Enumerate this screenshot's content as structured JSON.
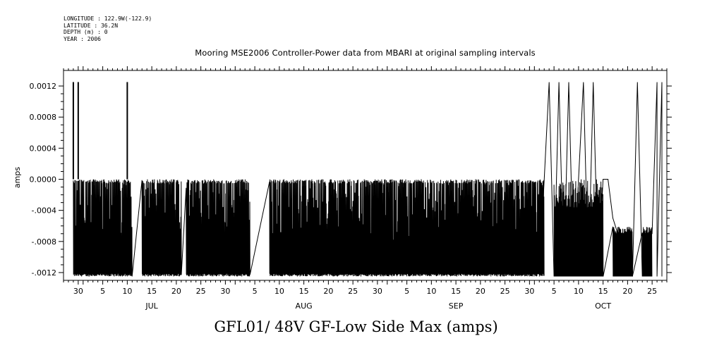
{
  "meta": {
    "longitude": "LONGITUDE : 122.9W(-122.9)",
    "latitude": "LATITUDE : 36.2N",
    "depth": "DEPTH (m) : 0",
    "year": "YEAR : 2006"
  },
  "chart_data": {
    "type": "line",
    "title": "Mooring MSE2006 Controller-Power data from MBARI at original sampling intervals",
    "xlabel": "",
    "ylabel": "amps",
    "footer_label": "GFL01/ 48V GF-Low Side Max (amps)",
    "ylim": [
      -0.0013,
      0.0014
    ],
    "y_ticks": [
      -0.0012,
      -0.0008,
      -0.0004,
      0.0,
      0.0004,
      0.0008,
      0.0012
    ],
    "y_tick_labels": [
      "-.0012",
      "-.0008",
      "-.0004",
      "0.0000",
      "0.0004",
      "0.0008",
      "0.0012"
    ],
    "x_range": [
      "2006-06-27",
      "2006-10-28"
    ],
    "x_tick_labels": [
      "30",
      "5",
      "10",
      "15",
      "20",
      "25",
      "30",
      "5",
      "10",
      "15",
      "20",
      "25",
      "30",
      "5",
      "10",
      "15",
      "20",
      "25",
      "30",
      "5",
      "10",
      "15",
      "20",
      "25"
    ],
    "month_labels": [
      "JUL",
      "AUG",
      "SEP",
      "OCT"
    ],
    "grid": false,
    "series": [
      {
        "envelope": [
          {
            "x": "2006-06-29",
            "min": -0.00125,
            "max": 0.00125
          },
          {
            "x": "2006-07-05",
            "min": -0.00125,
            "max": 0.0
          },
          {
            "x": "2006-07-10",
            "min": -0.00125,
            "max": 0.00125
          },
          {
            "x": "2006-07-15",
            "min": -0.00125,
            "max": 0.0
          },
          {
            "x": "2006-07-25",
            "min": -0.00125,
            "max": 0.0
          },
          {
            "x": "2006-08-05",
            "min": -0.00125,
            "max": 0.0
          },
          {
            "x": "2006-08-20",
            "min": -0.00125,
            "max": 0.0
          },
          {
            "x": "2006-09-05",
            "min": -0.00125,
            "max": 0.0
          },
          {
            "x": "2006-09-20",
            "min": -0.00125,
            "max": 0.0
          },
          {
            "x": "2006-10-03",
            "min": -0.00125,
            "max": 0.00125
          },
          {
            "x": "2006-10-10",
            "min": -0.00125,
            "max": 0.00125
          },
          {
            "x": "2006-10-16",
            "min": -0.00125,
            "max": 0.0
          },
          {
            "x": "2006-10-22",
            "min": -0.00125,
            "max": 0.00125
          },
          {
            "x": "2006-10-26",
            "min": -0.00125,
            "max": 0.00125
          }
        ]
      }
    ]
  }
}
